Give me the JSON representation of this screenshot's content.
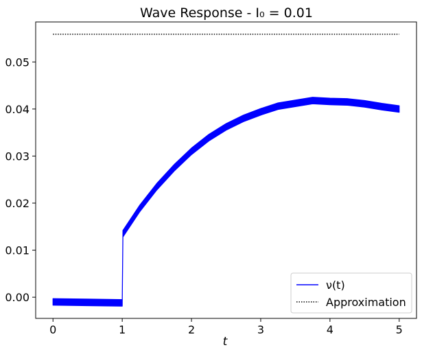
{
  "chart_data": {
    "type": "line",
    "title": "Wave Response - I₀ = 0.01",
    "xlabel": "t",
    "ylabel": "",
    "xlim": [
      -0.25,
      5.25
    ],
    "ylim": [
      -0.0045,
      0.0585
    ],
    "x_ticks": [
      0,
      1,
      2,
      3,
      4,
      5
    ],
    "x_tick_labels": [
      "0",
      "1",
      "2",
      "3",
      "4",
      "5"
    ],
    "y_ticks": [
      0.0,
      0.01,
      0.02,
      0.03,
      0.04,
      0.05
    ],
    "y_tick_labels": [
      "0.00",
      "0.01",
      "0.02",
      "0.03",
      "0.04",
      "0.05"
    ],
    "grid": false,
    "legend_position": "bottom-right",
    "series": [
      {
        "name": "ν(t)",
        "color": "#0000ff",
        "style": "solid",
        "band_halfwidth": 0.0007,
        "x": [
          0,
          0.5,
          0.99,
          1.0,
          1.01,
          1.25,
          1.5,
          1.75,
          2.0,
          2.25,
          2.5,
          2.75,
          3.0,
          3.25,
          3.5,
          3.75,
          4.0,
          4.25,
          4.5,
          4.75,
          5.0
        ],
        "y": [
          -0.001,
          -0.0011,
          -0.0012,
          -0.0012,
          0.0135,
          0.0188,
          0.0235,
          0.0275,
          0.031,
          0.0339,
          0.0362,
          0.038,
          0.0394,
          0.0406,
          0.0412,
          0.0418,
          0.0416,
          0.0415,
          0.0411,
          0.0405,
          0.04
        ]
      },
      {
        "name": "Approximation",
        "color": "#000000",
        "style": "dotted",
        "x": [
          0,
          5
        ],
        "y": [
          0.0559,
          0.0559
        ]
      }
    ]
  }
}
